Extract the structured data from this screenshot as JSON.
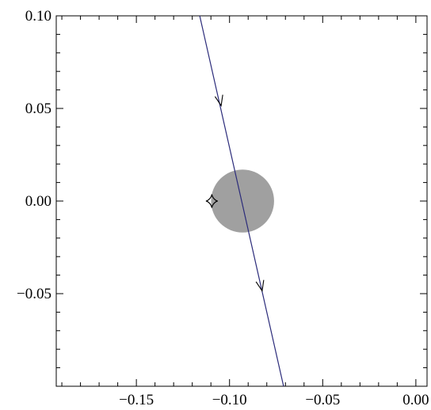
{
  "chart_data": {
    "type": "line",
    "title": "",
    "xlabel": "",
    "ylabel": "",
    "xlim": [
      -0.193,
      0.006
    ],
    "ylim": [
      -0.1,
      0.1
    ],
    "grid": false,
    "x_major_ticks": [
      -0.15,
      -0.1,
      -0.05,
      0.0
    ],
    "x_tick_labels": [
      "−0.15",
      "−0.10",
      "−0.05",
      "0.00"
    ],
    "y_major_ticks": [
      0.1,
      0.05,
      0.0,
      -0.05
    ],
    "y_tick_labels": [
      "0.10",
      "0.05",
      "0.00",
      "−0.05"
    ],
    "series": [
      {
        "kind": "source-trajectory",
        "color": "#2b2b7a",
        "points": [
          [
            -0.116,
            0.1
          ],
          [
            -0.071,
            -0.1
          ]
        ],
        "direction_arrows_at": [
          [
            -0.1045,
            0.0515
          ],
          [
            -0.0825,
            -0.0485
          ]
        ]
      }
    ],
    "lens_disk": {
      "center": [
        -0.093,
        0.0
      ],
      "radius": 0.0169,
      "color": "#a0a0a0"
    },
    "caustic": {
      "center": [
        -0.1095,
        0.0
      ],
      "half_width": 0.0032,
      "half_height": 0.0037,
      "color": "#000000"
    }
  }
}
